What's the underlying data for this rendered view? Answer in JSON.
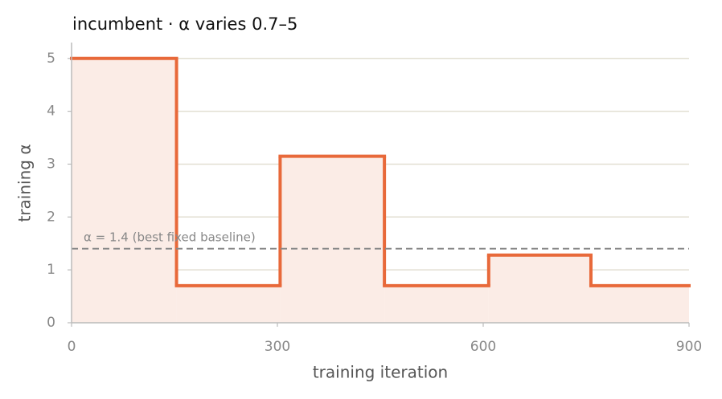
{
  "chart_data": {
    "type": "step",
    "title": "incumbent   ·   α varies 0.7–5",
    "x_label": "training iteration",
    "y_label": "training α",
    "x": [
      0,
      153,
      304,
      456,
      608,
      757,
      900
    ],
    "series": [
      {
        "name": "incumbent",
        "color": "#e8693a",
        "values": [
          5,
          0.7,
          3.15,
          0.7,
          1.28,
          0.7,
          0.7
        ]
      }
    ],
    "fill_color": "#fbece6",
    "reference_lines": [
      {
        "value": 1.4,
        "label": "α = 1.4 (best fixed baseline)",
        "color": "#888888"
      }
    ],
    "xlim": [
      0,
      900
    ],
    "xticks": [
      0,
      300,
      600,
      900
    ],
    "ylim": [
      0,
      5.3
    ],
    "yticks": [
      0,
      1,
      2,
      3,
      4,
      5
    ],
    "grid": true
  }
}
